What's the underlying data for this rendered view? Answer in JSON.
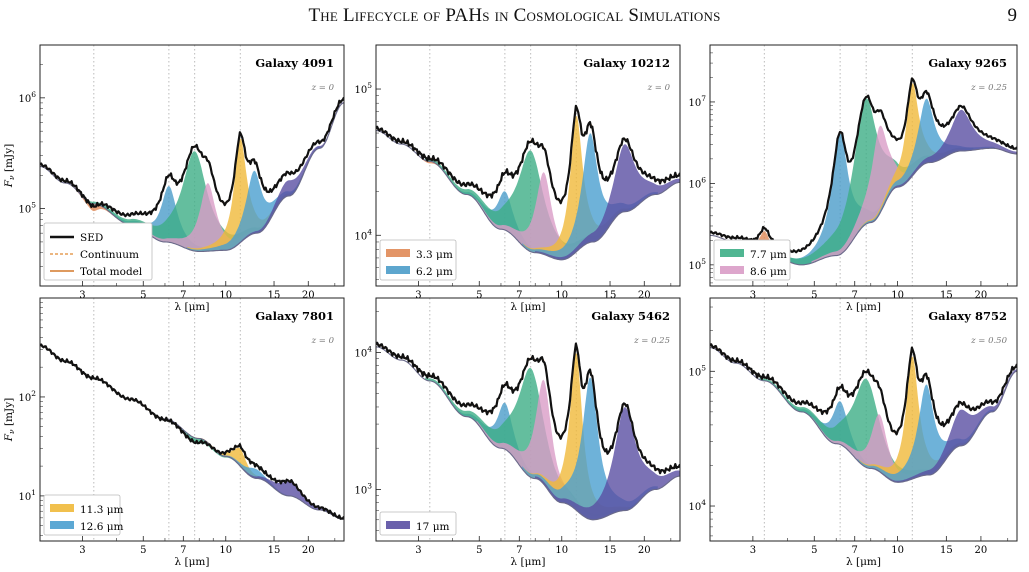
{
  "page": {
    "running_title": "The Lifecycle of PAHs in Cosmological Simulations",
    "page_number": "9"
  },
  "axes": {
    "xlabel": "λ [μm]",
    "ylabel": "F_ν [mJy]",
    "xlim": [
      2.1,
      27
    ],
    "xticks": [
      3,
      5,
      7,
      10,
      15,
      20
    ],
    "xscale": "log",
    "yscale": "log",
    "feature_lines_um": [
      3.3,
      6.2,
      7.7,
      11.3
    ],
    "grid": false
  },
  "colors": {
    "sed": "#111111",
    "continuum": "#e08a35",
    "total_model": "#d4782a",
    "f3p3": "#e08a57",
    "f6p2": "#4b9cc9",
    "f7p7": "#3dae86",
    "f8p6": "#d99cc7",
    "f11p3": "#f0b93a",
    "f12p6": "#4a9fcf",
    "f17": "#5a4fa3",
    "extra_c": "#2ab0a8",
    "extra_d": "#b8574b"
  },
  "chart_data": [
    {
      "type": "line",
      "title": "Galaxy 4091",
      "redshift": "z = 0",
      "ylim": [
        20000,
        3000000
      ],
      "yticks": [
        100000,
        1000000
      ],
      "legend": {
        "placement": "lower-left",
        "entries": [
          "SED",
          "Continuum",
          "Total model"
        ]
      },
      "continuum_points": [
        [
          2.1,
          240000
        ],
        [
          2.6,
          170000
        ],
        [
          3.3,
          110000
        ],
        [
          4.5,
          72000
        ],
        [
          6,
          50000
        ],
        [
          8,
          41000
        ],
        [
          10,
          42000
        ],
        [
          13,
          60000
        ],
        [
          17,
          130000
        ],
        [
          22,
          350000
        ],
        [
          27,
          900000
        ]
      ],
      "features": [
        {
          "name": "3.3 μm",
          "center": 3.3,
          "peak": 95000
        },
        {
          "name": "6.2 μm",
          "center": 6.2,
          "peak": 160000
        },
        {
          "name": "7.7 μm",
          "center": 7.7,
          "peak": 330000
        },
        {
          "name": "8.6 μm",
          "center": 8.6,
          "peak": 170000
        },
        {
          "name": "11.3 μm",
          "center": 11.3,
          "peak": 430000
        },
        {
          "name": "12.6 μm",
          "center": 12.7,
          "peak": 220000
        },
        {
          "name": "17 μm",
          "center": 17.0,
          "peak": 180000
        }
      ]
    },
    {
      "type": "line",
      "title": "Galaxy 10212",
      "redshift": "z = 0",
      "ylim": [
        4500,
        200000
      ],
      "yticks": [
        10000,
        100000
      ],
      "legend": {
        "placement": "lower-left",
        "entries": [
          "3.3 μm",
          "6.2 μm"
        ]
      },
      "continuum_points": [
        [
          2.1,
          52000
        ],
        [
          2.6,
          42000
        ],
        [
          3.3,
          32000
        ],
        [
          4.5,
          19000
        ],
        [
          6,
          11000
        ],
        [
          8,
          7600
        ],
        [
          10,
          6800
        ],
        [
          13,
          9000
        ],
        [
          17,
          14500
        ],
        [
          22,
          19000
        ],
        [
          27,
          23000
        ]
      ],
      "features": [
        {
          "name": "3.3 μm",
          "center": 3.3,
          "peak": 31000
        },
        {
          "name": "6.2 μm",
          "center": 6.2,
          "peak": 20000
        },
        {
          "name": "7.7 μm",
          "center": 7.7,
          "peak": 38000
        },
        {
          "name": "8.6 μm",
          "center": 8.6,
          "peak": 27000
        },
        {
          "name": "11.3 μm",
          "center": 11.3,
          "peak": 66000
        },
        {
          "name": "12.6 μm",
          "center": 12.7,
          "peak": 50000
        },
        {
          "name": "17 μm",
          "center": 17.0,
          "peak": 42000
        }
      ]
    },
    {
      "type": "line",
      "title": "Galaxy 9265",
      "redshift": "z = 0.25",
      "ylim": [
        55000,
        50000000
      ],
      "yticks": [
        100000,
        1000000,
        10000000
      ],
      "legend": {
        "placement": "lower-left",
        "entries": [
          "7.7 μm",
          "8.6 μm"
        ]
      },
      "continuum_points": [
        [
          2.1,
          230000
        ],
        [
          2.6,
          190000
        ],
        [
          3.3,
          140000
        ],
        [
          4.5,
          100000
        ],
        [
          6,
          130000
        ],
        [
          8,
          330000
        ],
        [
          10,
          900000
        ],
        [
          13,
          1800000
        ],
        [
          17,
          2500000
        ],
        [
          22,
          2700000
        ],
        [
          27,
          2300000
        ]
      ],
      "features": [
        {
          "name": "3.3 μm",
          "center": 3.3,
          "peak": 260000
        },
        {
          "name": "6.2 μm",
          "center": 6.2,
          "peak": 4100000
        },
        {
          "name": "7.7 μm",
          "center": 7.7,
          "peak": 11000000
        },
        {
          "name": "8.6 μm",
          "center": 8.6,
          "peak": 5000000
        },
        {
          "name": "11.3 μm",
          "center": 11.3,
          "peak": 17000000
        },
        {
          "name": "12.6 μm",
          "center": 12.7,
          "peak": 11000000
        },
        {
          "name": "17 μm",
          "center": 17.0,
          "peak": 8000000
        }
      ]
    },
    {
      "type": "line",
      "title": "Galaxy 7801",
      "redshift": "z = 0",
      "ylim": [
        3.5,
        1000
      ],
      "yticks": [
        10,
        100
      ],
      "legend": {
        "placement": "lower-left",
        "entries": [
          "11.3 μm",
          "12.6 μm"
        ]
      },
      "continuum_points": [
        [
          2.1,
          330
        ],
        [
          2.6,
          230
        ],
        [
          3.3,
          155
        ],
        [
          4.5,
          95
        ],
        [
          6,
          60
        ],
        [
          8,
          38
        ],
        [
          10,
          25
        ],
        [
          13,
          15
        ],
        [
          17,
          10
        ],
        [
          22,
          7.2
        ],
        [
          27,
          5.8
        ]
      ],
      "features": [
        {
          "name": "7.7 μm",
          "center": 7.7,
          "peak": 34
        },
        {
          "name": "11.3 μm",
          "center": 11.3,
          "peak": 30
        },
        {
          "name": "12.6 μm",
          "center": 12.7,
          "peak": 19
        },
        {
          "name": "17 μm",
          "center": 17.0,
          "peak": 14
        }
      ]
    },
    {
      "type": "line",
      "title": "Galaxy 5462",
      "redshift": "z = 0.25",
      "ylim": [
        420,
        25000
      ],
      "yticks": [
        1000,
        10000
      ],
      "legend": {
        "placement": "lower-left",
        "entries": [
          "17 μm"
        ]
      },
      "continuum_points": [
        [
          2.1,
          11000
        ],
        [
          2.6,
          8800
        ],
        [
          3.3,
          6200
        ],
        [
          4.5,
          3400
        ],
        [
          6,
          2000
        ],
        [
          8,
          1200
        ],
        [
          10,
          800
        ],
        [
          13,
          600
        ],
        [
          17,
          700
        ],
        [
          22,
          1000
        ],
        [
          27,
          1250
        ]
      ],
      "features": [
        {
          "name": "3.3 μm",
          "center": 3.3,
          "peak": 6200
        },
        {
          "name": "6.2 μm",
          "center": 6.2,
          "peak": 4300
        },
        {
          "name": "7.7 μm",
          "center": 7.7,
          "peak": 7700
        },
        {
          "name": "8.6 μm",
          "center": 8.6,
          "peak": 6300
        },
        {
          "name": "11.3 μm",
          "center": 11.3,
          "peak": 10000
        },
        {
          "name": "12.6 μm",
          "center": 12.7,
          "peak": 6600
        },
        {
          "name": "17 μm",
          "center": 17.0,
          "peak": 4000
        }
      ]
    },
    {
      "type": "line",
      "title": "Galaxy 8752",
      "redshift": "z = 0.50",
      "ylim": [
        5500,
        350000
      ],
      "yticks": [
        10000,
        100000
      ],
      "legend": {
        "placement": "none",
        "entries": []
      },
      "continuum_points": [
        [
          2.1,
          150000
        ],
        [
          2.6,
          115000
        ],
        [
          3.3,
          85000
        ],
        [
          4.5,
          50000
        ],
        [
          6,
          29000
        ],
        [
          8,
          19000
        ],
        [
          10,
          15000
        ],
        [
          13,
          17000
        ],
        [
          17,
          28000
        ],
        [
          22,
          50000
        ],
        [
          27,
          100000
        ]
      ],
      "features": [
        {
          "name": "3.3 μm",
          "center": 3.3,
          "peak": 85000
        },
        {
          "name": "6.2 μm",
          "center": 6.2,
          "peak": 60000
        },
        {
          "name": "7.7 μm",
          "center": 7.7,
          "peak": 88000
        },
        {
          "name": "8.6 μm",
          "center": 8.6,
          "peak": 48000
        },
        {
          "name": "11.3 μm",
          "center": 11.3,
          "peak": 130000
        },
        {
          "name": "12.6 μm",
          "center": 12.7,
          "peak": 80000
        },
        {
          "name": "17 μm",
          "center": 17.0,
          "peak": 52000
        }
      ]
    }
  ]
}
